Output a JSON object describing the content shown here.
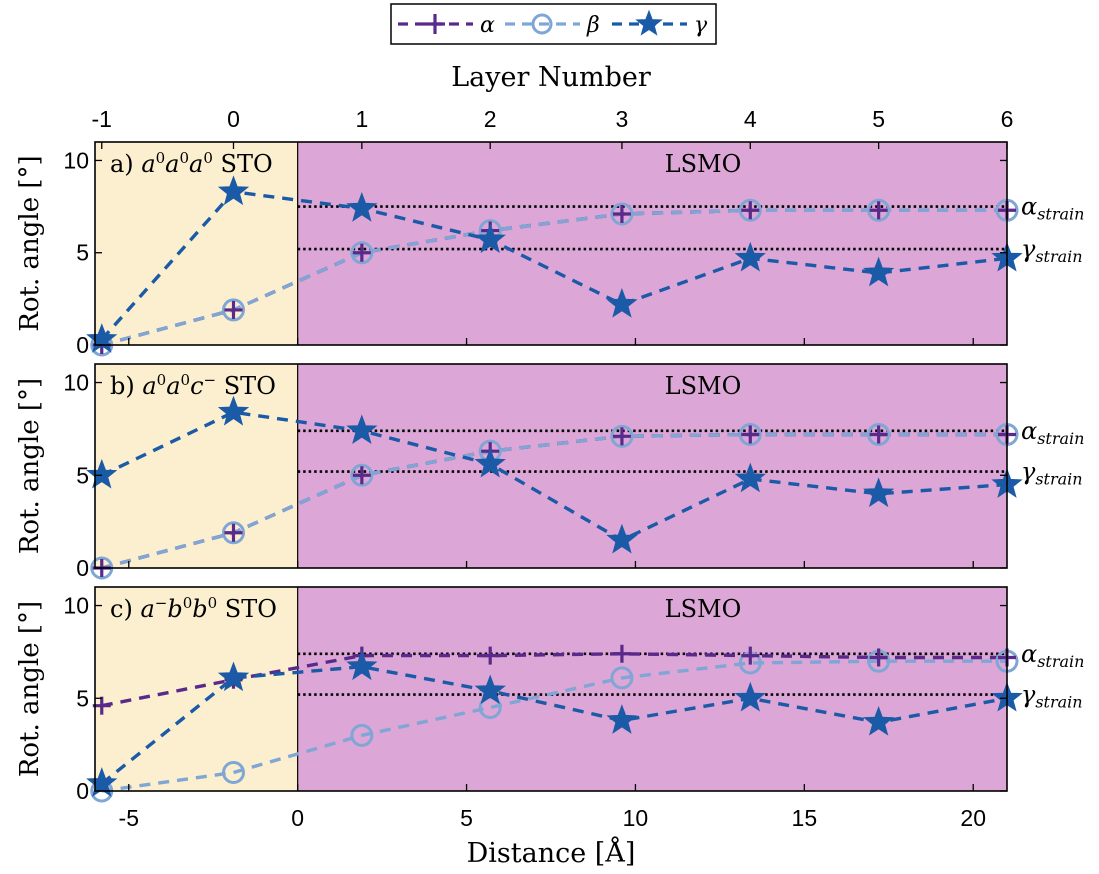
{
  "legend": {
    "items": [
      {
        "label": "α",
        "color": "#5a2a8a",
        "marker": "plus-marker"
      },
      {
        "label": "β",
        "color": "#7fa6d4",
        "marker": "circle-marker"
      },
      {
        "label": "γ",
        "color": "#1b5aa6",
        "marker": "star-marker"
      }
    ]
  },
  "top_axis": {
    "title": "Layer Number",
    "ticks": [
      {
        "label": "-1",
        "x": -5.8
      },
      {
        "label": "0",
        "x": -1.9
      },
      {
        "label": "1",
        "x": 1.9
      },
      {
        "label": "2",
        "x": 5.7
      },
      {
        "label": "3",
        "x": 9.6
      },
      {
        "label": "4",
        "x": 13.4
      },
      {
        "label": "5",
        "x": 17.2
      },
      {
        "label": "6",
        "x": 21.0
      }
    ]
  },
  "bottom_axis": {
    "title": "Distance [Å]",
    "ticks": [
      "-5",
      "0",
      "5",
      "10",
      "15",
      "20"
    ]
  },
  "ylabel": "Rot. angle [°]",
  "region_labels": {
    "substrate": "STO",
    "film": "LSMO"
  },
  "strain_labels": {
    "alpha": "α",
    "alpha_sub": "strain",
    "gamma": "γ",
    "gamma_sub": "strain"
  },
  "colors": {
    "sto": "#fbefcf",
    "lsmo": "#dca6d6",
    "alpha": "#5a2a8a",
    "beta": "#7fa6d4",
    "gamma": "#1b5aa6"
  },
  "chart_data": [
    {
      "type": "line",
      "panel_label": "a)",
      "tilt": {
        "base1": "a",
        "sup1": "0",
        "base2": "a",
        "sup2": "0",
        "base3": "a",
        "sup3": "0"
      },
      "xlim": [
        -6,
        21
      ],
      "ylim": [
        0,
        11
      ],
      "yticks": [
        "0",
        "5",
        "10"
      ],
      "x": [
        -5.8,
        -1.9,
        1.9,
        5.7,
        9.6,
        13.4,
        17.2,
        21.0
      ],
      "series": [
        {
          "name": "α",
          "values": [
            0,
            1.9,
            5.0,
            6.2,
            7.1,
            7.3,
            7.3,
            7.3
          ]
        },
        {
          "name": "β",
          "values": [
            0,
            1.9,
            5.0,
            6.2,
            7.1,
            7.3,
            7.3,
            7.3
          ]
        },
        {
          "name": "γ",
          "values": [
            0.3,
            8.3,
            7.4,
            5.7,
            2.2,
            4.7,
            3.9,
            4.7
          ]
        }
      ],
      "alpha_strain": 7.5,
      "gamma_strain": 5.2,
      "interface_x": 0
    },
    {
      "type": "line",
      "panel_label": "b)",
      "tilt": {
        "base1": "a",
        "sup1": "0",
        "base2": "a",
        "sup2": "0",
        "base3": "c",
        "sup3": "−"
      },
      "xlim": [
        -6,
        21
      ],
      "ylim": [
        0,
        11
      ],
      "yticks": [
        "0",
        "5",
        "10"
      ],
      "x": [
        -5.8,
        -1.9,
        1.9,
        5.7,
        9.6,
        13.4,
        17.2,
        21.0
      ],
      "series": [
        {
          "name": "α",
          "values": [
            0,
            1.9,
            5.0,
            6.3,
            7.1,
            7.2,
            7.2,
            7.2
          ]
        },
        {
          "name": "β",
          "values": [
            0,
            1.9,
            5.0,
            6.3,
            7.1,
            7.2,
            7.2,
            7.2
          ]
        },
        {
          "name": "γ",
          "values": [
            5.0,
            8.4,
            7.4,
            5.6,
            1.5,
            4.8,
            4.0,
            4.5
          ]
        }
      ],
      "alpha_strain": 7.4,
      "gamma_strain": 5.2,
      "interface_x": 0
    },
    {
      "type": "line",
      "panel_label": "c)",
      "tilt": {
        "base1": "a",
        "sup1": "−",
        "base2": "b",
        "sup2": "0",
        "base3": "b",
        "sup3": "0"
      },
      "xlim": [
        -6,
        21
      ],
      "ylim": [
        0,
        11
      ],
      "yticks": [
        "0",
        "5",
        "10"
      ],
      "x": [
        -5.8,
        -1.9,
        1.9,
        5.7,
        9.6,
        13.4,
        17.2,
        21.0
      ],
      "series": [
        {
          "name": "α",
          "values": [
            4.6,
            6.0,
            7.3,
            7.3,
            7.4,
            7.3,
            7.2,
            7.2
          ]
        },
        {
          "name": "β",
          "values": [
            0,
            1.0,
            3.0,
            4.5,
            6.1,
            6.9,
            7.0,
            7.0
          ]
        },
        {
          "name": "γ",
          "values": [
            0.4,
            6.1,
            6.7,
            5.4,
            3.8,
            5.0,
            3.7,
            5.0
          ]
        }
      ],
      "alpha_strain": 7.4,
      "gamma_strain": 5.2,
      "interface_x": 0
    }
  ]
}
